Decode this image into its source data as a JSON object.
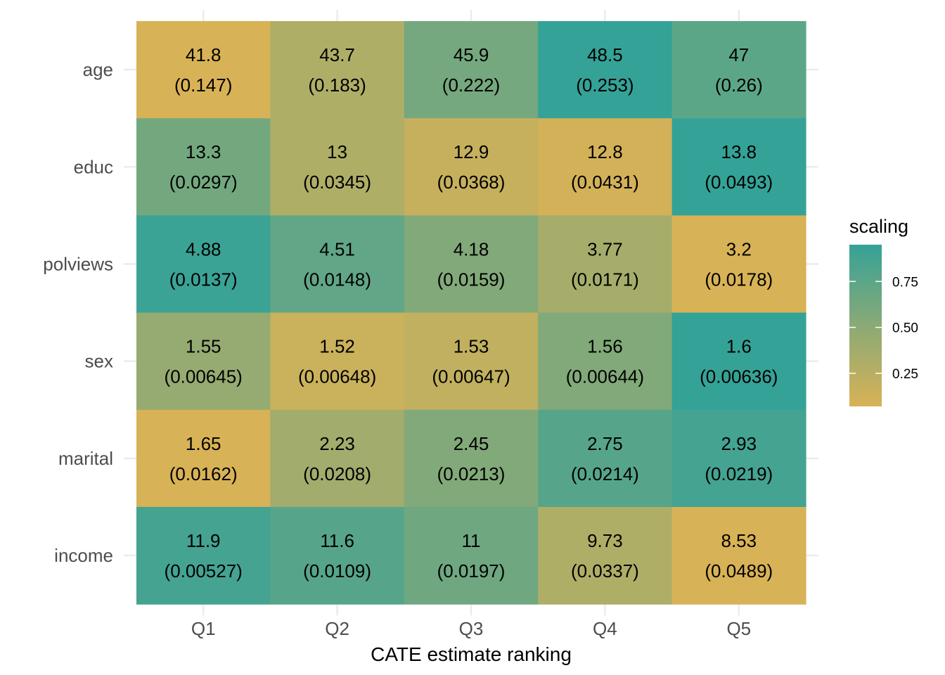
{
  "chart_data": {
    "type": "heatmap",
    "xlabel": "CATE estimate ranking",
    "ylabel": "",
    "x_categories": [
      "Q1",
      "Q2",
      "Q3",
      "Q4",
      "Q5"
    ],
    "y_categories": [
      "age",
      "educ",
      "polviews",
      "sex",
      "marital",
      "income"
    ],
    "cells": [
      {
        "row": "age",
        "values": [
          "41.8",
          "43.7",
          "45.9",
          "48.5",
          "47"
        ],
        "errors": [
          "(0.147)",
          "(0.183)",
          "(0.222)",
          "(0.253)",
          "(0.26)"
        ],
        "scaling": [
          0.07,
          0.3,
          0.62,
          0.95,
          0.75
        ]
      },
      {
        "row": "educ",
        "values": [
          "13.3",
          "13",
          "12.9",
          "12.8",
          "13.8"
        ],
        "errors": [
          "(0.0297)",
          "(0.0345)",
          "(0.0368)",
          "(0.0431)",
          "(0.0493)"
        ],
        "scaling": [
          0.63,
          0.3,
          0.17,
          0.1,
          0.95
        ]
      },
      {
        "row": "polviews",
        "values": [
          "4.88",
          "4.51",
          "4.18",
          "3.77",
          "3.2"
        ],
        "errors": [
          "(0.0137)",
          "(0.0148)",
          "(0.0159)",
          "(0.0171)",
          "(0.0178)"
        ],
        "scaling": [
          0.92,
          0.72,
          0.55,
          0.35,
          0.07
        ]
      },
      {
        "row": "sex",
        "values": [
          "1.55",
          "1.52",
          "1.53",
          "1.56",
          "1.6"
        ],
        "errors": [
          "(0.00645)",
          "(0.00648)",
          "(0.00647)",
          "(0.00644)",
          "(0.00636)"
        ],
        "scaling": [
          0.45,
          0.15,
          0.2,
          0.55,
          0.95
        ]
      },
      {
        "row": "marital",
        "values": [
          "1.65",
          "2.23",
          "2.45",
          "2.75",
          "2.93"
        ],
        "errors": [
          "(0.0162)",
          "(0.0208)",
          "(0.0213)",
          "(0.0214)",
          "(0.0219)"
        ],
        "scaling": [
          0.07,
          0.38,
          0.55,
          0.78,
          0.87
        ]
      },
      {
        "row": "income",
        "values": [
          "11.9",
          "11.6",
          "11",
          "9.73",
          "8.53"
        ],
        "errors": [
          "(0.00527)",
          "(0.0109)",
          "(0.0197)",
          "(0.0337)",
          "(0.0489)"
        ],
        "scaling": [
          0.87,
          0.78,
          0.65,
          0.3,
          0.07
        ]
      }
    ],
    "legend": {
      "title": "scaling",
      "placement": "right",
      "ticks": [
        {
          "value": 0.25,
          "label": "0.25"
        },
        {
          "value": 0.5,
          "label": "0.50"
        },
        {
          "value": 0.75,
          "label": "0.75"
        }
      ],
      "range": [
        0.07,
        0.95
      ],
      "color_low": "#D8B256",
      "color_high": "#35A297"
    },
    "grid": true
  }
}
